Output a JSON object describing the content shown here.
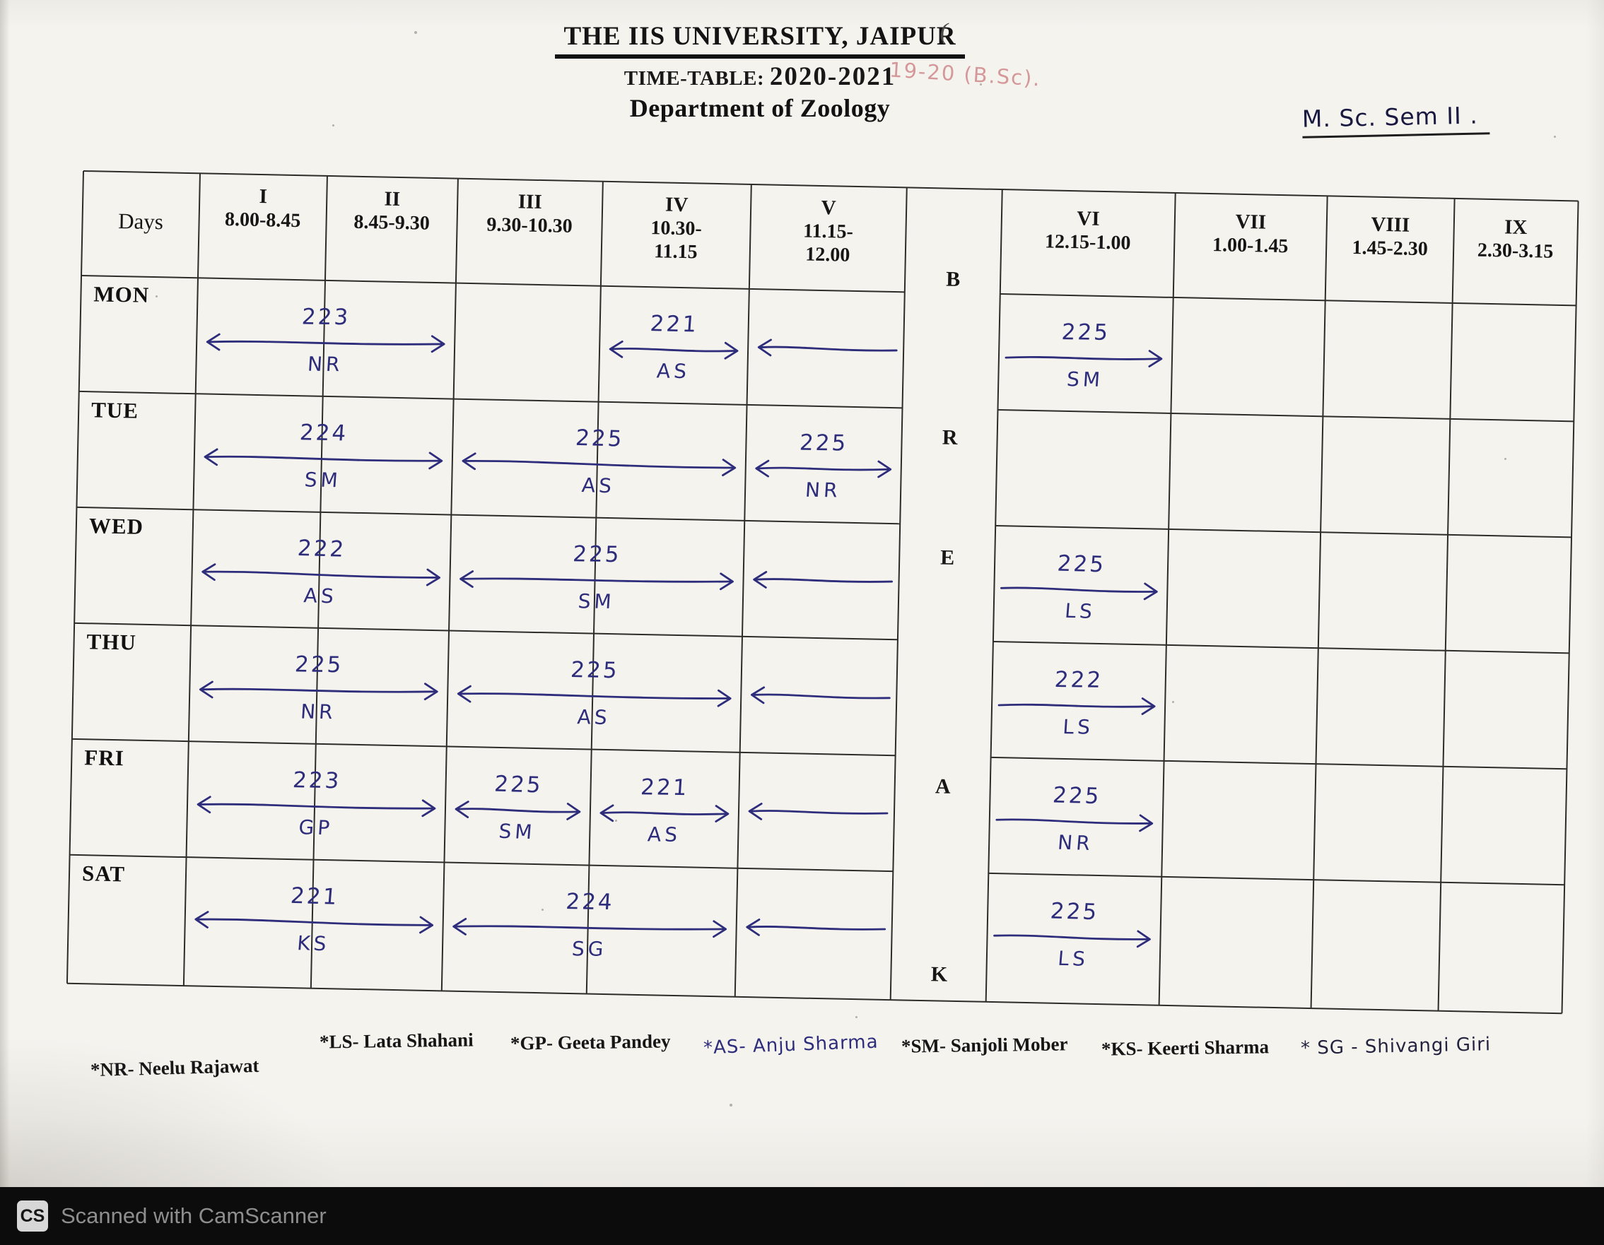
{
  "header": {
    "university": "THE IIS UNIVERSITY, JAIPUR",
    "paren_mark": "(",
    "timetable_label": "TIME-TABLE:",
    "session": "2020-2021",
    "annotation_red": "19-20 (B.Sc).",
    "department": "Department of Zoology",
    "semester_note": "M. Sc. Sem II ."
  },
  "table": {
    "days_header": "Days",
    "break_letters": [
      "B",
      "R",
      "E",
      "A",
      "K"
    ],
    "periods": [
      {
        "numeral": "I",
        "time": "8.00-8.45"
      },
      {
        "numeral": "II",
        "time": "8.45-9.30"
      },
      {
        "numeral": "III",
        "time": "9.30-10.30"
      },
      {
        "numeral": "IV",
        "time": "10.30-11.15"
      },
      {
        "numeral": "V",
        "time": "11.15-12.00"
      },
      {
        "numeral": "VI",
        "time": "12.15-1.00"
      },
      {
        "numeral": "VII",
        "time": "1.00-1.45"
      },
      {
        "numeral": "VIII",
        "time": "1.45-2.30"
      },
      {
        "numeral": "IX",
        "time": "2.30-3.15"
      }
    ],
    "rows": [
      {
        "day": "MON",
        "entries": [
          {
            "code": "223",
            "teacher": "NR",
            "cols": "I-II",
            "heads": "both"
          },
          {
            "code": "221",
            "teacher": "AS",
            "cols": "IV",
            "heads": "both"
          },
          {
            "code": "",
            "teacher": "",
            "cols": "V",
            "heads": "left"
          },
          {
            "code": "225",
            "teacher": "SM",
            "cols": "VI",
            "heads": "right"
          }
        ]
      },
      {
        "day": "TUE",
        "entries": [
          {
            "code": "224",
            "teacher": "SM",
            "cols": "I-II",
            "heads": "both"
          },
          {
            "code": "225",
            "teacher": "AS",
            "cols": "III-IV",
            "heads": "both"
          },
          {
            "code": "225",
            "teacher": "NR",
            "cols": "V",
            "heads": "both"
          }
        ]
      },
      {
        "day": "WED",
        "entries": [
          {
            "code": "222",
            "teacher": "AS",
            "cols": "I-II",
            "heads": "both"
          },
          {
            "code": "225",
            "teacher": "SM",
            "cols": "III-IV",
            "heads": "both"
          },
          {
            "code": "",
            "teacher": "",
            "cols": "V",
            "heads": "left"
          },
          {
            "code": "225",
            "teacher": "LS",
            "cols": "VI",
            "heads": "right"
          }
        ]
      },
      {
        "day": "THU",
        "entries": [
          {
            "code": "225",
            "teacher": "NR",
            "cols": "I-II",
            "heads": "both"
          },
          {
            "code": "225",
            "teacher": "AS",
            "cols": "III-IV",
            "heads": "both"
          },
          {
            "code": "",
            "teacher": "",
            "cols": "V",
            "heads": "left"
          },
          {
            "code": "222",
            "teacher": "LS",
            "cols": "VI",
            "heads": "right"
          }
        ]
      },
      {
        "day": "FRI",
        "entries": [
          {
            "code": "223",
            "teacher": "GP",
            "cols": "I-II",
            "heads": "both"
          },
          {
            "code": "225",
            "teacher": "SM",
            "cols": "III",
            "heads": "both"
          },
          {
            "code": "221",
            "teacher": "AS",
            "cols": "IV",
            "heads": "both"
          },
          {
            "code": "",
            "teacher": "",
            "cols": "V",
            "heads": "left"
          },
          {
            "code": "225",
            "teacher": "NR",
            "cols": "VI",
            "heads": "right"
          }
        ]
      },
      {
        "day": "SAT",
        "entries": [
          {
            "code": "221",
            "teacher": "KS",
            "cols": "I-II",
            "heads": "both"
          },
          {
            "code": "224",
            "teacher": "SG",
            "cols": "III-IV",
            "heads": "both"
          },
          {
            "code": "",
            "teacher": "",
            "cols": "V",
            "heads": "left"
          },
          {
            "code": "225",
            "teacher": "LS",
            "cols": "VI",
            "heads": "right"
          }
        ]
      }
    ]
  },
  "legend": [
    {
      "text": "*NR- Neelu Rajawat",
      "style": "print"
    },
    {
      "text": "*LS- Lata Shahani",
      "style": "print"
    },
    {
      "text": "*GP- Geeta Pandey",
      "style": "print"
    },
    {
      "text": "*AS- Anju Sharma",
      "style": "hand-blue"
    },
    {
      "text": "*SM- Sanjoli Mober",
      "style": "print"
    },
    {
      "text": "*KS- Keerti Sharma",
      "style": "print"
    },
    {
      "text": "* SG - Shivangi Giri",
      "style": "hand-dark"
    }
  ],
  "footer": {
    "scanner_badge": "CS",
    "scanner_text": "Scanned with CamScanner"
  },
  "colors": {
    "ink": "#2d2d7b",
    "red_annotation": "#c4696e",
    "grid_line": "#2e2c29",
    "paper": "#f5f3ee",
    "footer_bg": "#0c0c0c",
    "footer_text": "#8e8e8e"
  }
}
